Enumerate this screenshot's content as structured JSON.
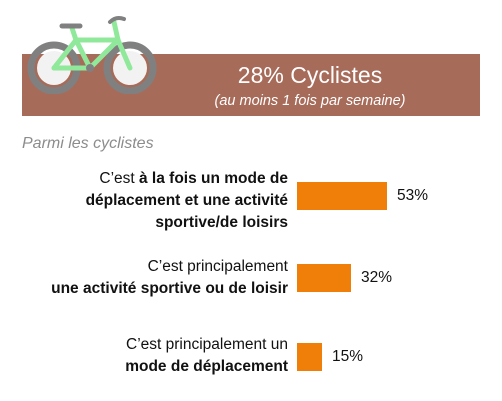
{
  "header": {
    "title": "28% Cyclistes",
    "subtitle": "(au moins 1 fois par semaine)"
  },
  "section_label": "Parmi les cyclistes",
  "colors": {
    "banner": "#a76b5a",
    "bar": "#f07f09",
    "bike_frame": "#90e89a",
    "wheel": "#808080"
  },
  "icons": {
    "bike": "bicycle-icon"
  },
  "chart_data": {
    "type": "bar",
    "orientation": "horizontal",
    "categories": [
      [
        {
          "t": "C’est ",
          "b": false
        },
        {
          "t": "à la fois un mode de",
          "b": true
        },
        {
          "t": "\n",
          "b": false
        },
        {
          "t": "déplacement et une activité",
          "b": true
        },
        {
          "t": "\n",
          "b": false
        },
        {
          "t": "sportive/de loisirs",
          "b": true
        }
      ],
      [
        {
          "t": "C’est principalement",
          "b": false
        },
        {
          "t": "\n",
          "b": false
        },
        {
          "t": "une activité sportive ou de loisir",
          "b": true
        }
      ],
      [
        {
          "t": "C’est principalement un",
          "b": false
        },
        {
          "t": "\n",
          "b": false
        },
        {
          "t": "mode de déplacement",
          "b": true
        }
      ]
    ],
    "values": [
      53,
      32,
      15
    ],
    "value_labels": [
      "53%",
      "32%",
      "15%"
    ],
    "unit": "%",
    "xlim": [
      0,
      100
    ]
  }
}
